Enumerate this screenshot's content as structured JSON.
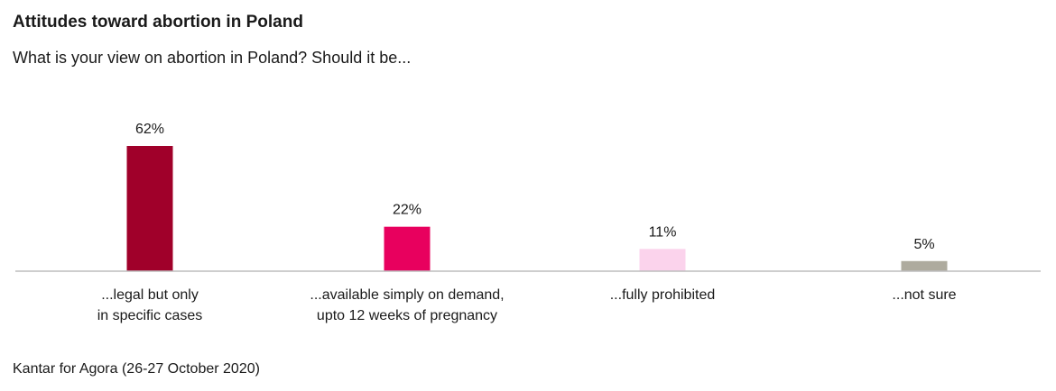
{
  "title": "Attitudes toward abortion in Poland",
  "subtitle": "What is your view on abortion in Poland? Should it be...",
  "source": "Kantar for Agora (26-27 October 2020)",
  "chart_data": {
    "type": "bar",
    "title": "Attitudes toward abortion in Poland",
    "subtitle": "What is your view on abortion in Poland? Should it be...",
    "categories": [
      [
        "...legal but only",
        "in specific cases"
      ],
      [
        "...available simply on demand,",
        "upto 12 weeks of pregnancy"
      ],
      [
        "...fully prohibited"
      ],
      [
        "...not sure"
      ]
    ],
    "values": [
      62,
      22,
      11,
      5
    ],
    "value_labels": [
      "62%",
      "22%",
      "11%",
      "5%"
    ],
    "colors": [
      "#a0002a",
      "#e8005e",
      "#fbd3ec",
      "#aeab9e"
    ],
    "axis_color": "#bdbdbd",
    "ylim": [
      0,
      62
    ],
    "grid": false,
    "legend": "none"
  }
}
